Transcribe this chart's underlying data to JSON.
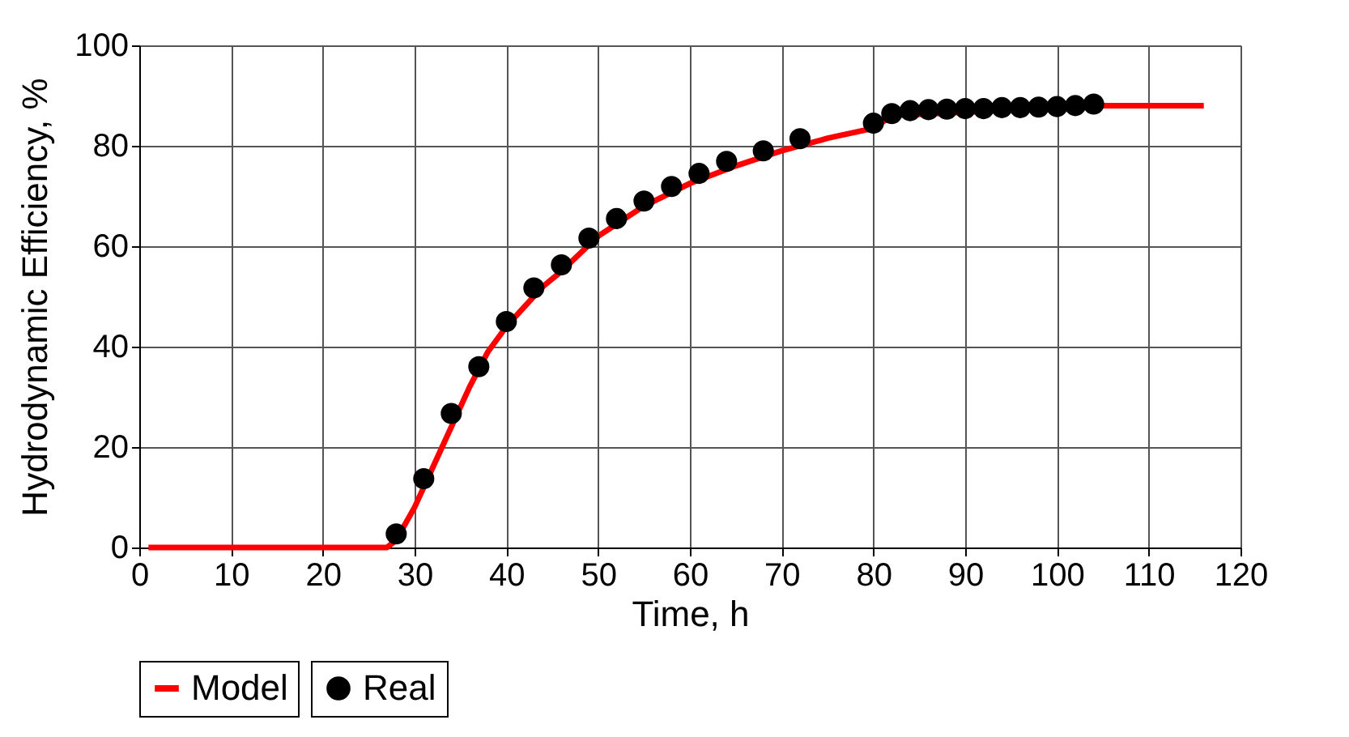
{
  "chart_data": {
    "type": "line",
    "xlabel": "Time, h",
    "ylabel": "Hydrodynamic Efficiency, %",
    "xlim": [
      0,
      120
    ],
    "xticks": [
      0,
      10,
      20,
      30,
      40,
      50,
      60,
      70,
      80,
      90,
      100,
      110,
      120
    ],
    "ylim": [
      0,
      100
    ],
    "yticks": [
      0,
      20,
      40,
      60,
      80,
      100
    ],
    "grid": true,
    "legend": "bottom",
    "series": [
      {
        "name": "Model",
        "color": "#ff0000",
        "marker": "none",
        "line_style": "solid",
        "x": [
          1,
          27,
          28,
          30,
          32,
          34,
          36,
          38,
          40,
          42,
          44,
          46,
          48,
          50,
          55,
          60,
          65,
          70,
          75,
          80,
          82,
          105,
          116
        ],
        "values": [
          0,
          0,
          1.5,
          8,
          16,
          24,
          32,
          39,
          44,
          48,
          52,
          55,
          58.5,
          62,
          68,
          72.5,
          76,
          79,
          81.5,
          83.5,
          86,
          88,
          88
        ]
      },
      {
        "name": "Real",
        "type": "scatter",
        "color": "#000000",
        "marker": "circle",
        "x": [
          28,
          31,
          34,
          37,
          40,
          43,
          46,
          49,
          52,
          55,
          58,
          61,
          64,
          68,
          72,
          80,
          82,
          84,
          86,
          88,
          90,
          92,
          94,
          96,
          98,
          100,
          102,
          104
        ],
        "values": [
          2.7,
          13.7,
          26.7,
          36,
          45,
          51.7,
          56.3,
          61.6,
          65.5,
          69,
          71.9,
          74.5,
          76.9,
          79,
          81.4,
          84.5,
          86.4,
          87,
          87.2,
          87.3,
          87.4,
          87.4,
          87.6,
          87.6,
          87.7,
          87.8,
          88,
          88.3
        ]
      }
    ]
  }
}
